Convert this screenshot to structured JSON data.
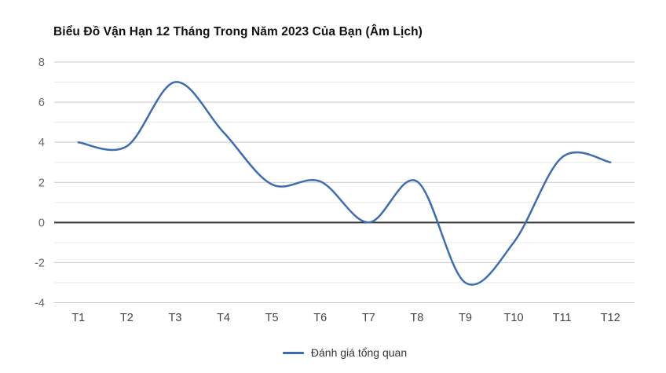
{
  "chart_data": {
    "type": "line",
    "title": "Biểu Đồ Vận Hạn 12 Tháng Trong Năm 2023 Của Bạn (Âm Lịch)",
    "categories": [
      "T1",
      "T2",
      "T3",
      "T4",
      "T5",
      "T6",
      "T7",
      "T8",
      "T9",
      "T10",
      "T11",
      "T12"
    ],
    "series": [
      {
        "name": "Đánh giá tổng quan",
        "values": [
          4,
          3.8,
          7,
          4.5,
          1.9,
          2.05,
          0,
          2.05,
          -3,
          -1,
          3.25,
          3
        ]
      }
    ],
    "xlabel": "",
    "ylabel": "",
    "ylim": [
      -4,
      8
    ],
    "y_tick_labels": [
      "8",
      "6",
      "4",
      "2",
      "0",
      "-2",
      "-4"
    ],
    "gridline_step": 1,
    "grid": "on",
    "curve": "smooth",
    "legend_position": "bottom",
    "colors": {
      "line": "#3e6cb3",
      "grid_major": "#c9c9c9",
      "grid_minor": "#e7e7e7",
      "zero_line": "#333333",
      "y_label": "#666666",
      "x_label": "#444444",
      "legend_text": "#333333",
      "title": "#111111",
      "background": "#ffffff"
    }
  }
}
